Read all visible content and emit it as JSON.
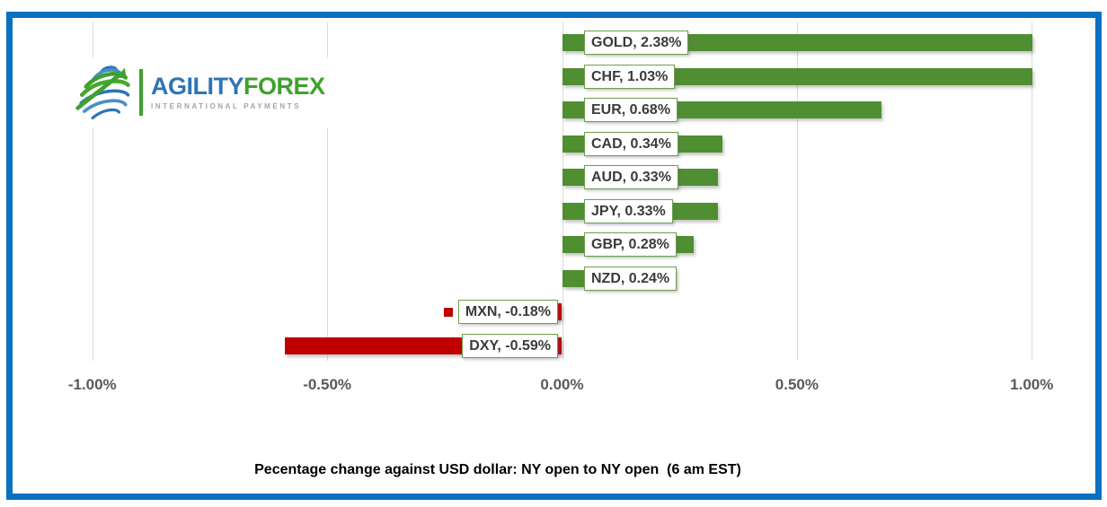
{
  "frame": {
    "border_color": "#0a70c0"
  },
  "logo": {
    "brand_part1": "AGILITY",
    "brand_part2": "FOREX",
    "tagline": "INTERNATIONAL PAYMENTS"
  },
  "chart_data": {
    "type": "bar",
    "orientation": "horizontal",
    "title": "Pecentage change against USD dollar: NY open to NY open  (6 am EST)",
    "xlabel": "",
    "ylabel": "",
    "xlim": [
      -1.0,
      1.0
    ],
    "grid": true,
    "positive_color": "#4f8f31",
    "negative_color": "#c00000",
    "label_border_color": "#6f9e4e",
    "axis_label_color": "#595959",
    "rows": [
      {
        "category": "GOLD",
        "value": 2.38,
        "label": "GOLD, 2.38%"
      },
      {
        "category": "CHF",
        "value": 1.03,
        "label": "CHF, 1.03%"
      },
      {
        "category": "EUR",
        "value": 0.68,
        "label": "EUR, 0.68%"
      },
      {
        "category": "CAD",
        "value": 0.34,
        "label": "CAD, 0.34%"
      },
      {
        "category": "AUD",
        "value": 0.33,
        "label": "AUD, 0.33%"
      },
      {
        "category": "JPY",
        "value": 0.33,
        "label": "JPY, 0.33%"
      },
      {
        "category": "GBP",
        "value": 0.28,
        "label": "GBP, 0.28%"
      },
      {
        "category": "NZD",
        "value": 0.24,
        "label": "NZD, 0.24%"
      },
      {
        "category": "MXN",
        "value": -0.18,
        "label": "MXN, -0.18%",
        "legend_key": true
      },
      {
        "category": "DXY",
        "value": -0.59,
        "label": "DXY, -0.59%"
      }
    ],
    "x_ticks": [
      {
        "label": "-1.00%",
        "value": -1.0
      },
      {
        "label": "-0.50%",
        "value": -0.5
      },
      {
        "label": "0.00%",
        "value": 0.0
      },
      {
        "label": "0.50%",
        "value": 0.5
      },
      {
        "label": "1.00%",
        "value": 1.0
      }
    ]
  }
}
